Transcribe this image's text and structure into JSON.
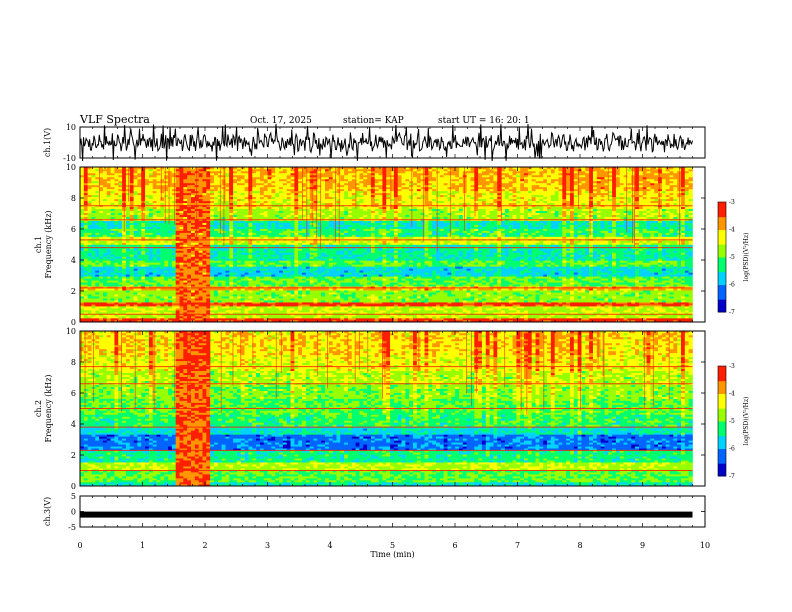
{
  "header": {
    "title": "VLF Spectra",
    "date": "Oct. 17, 2025",
    "station": "station= KAP",
    "start": "start  UT =   16: 20: 1"
  },
  "colors": {
    "spectrum": [
      "#0000c8",
      "#0064ff",
      "#00d2ff",
      "#00ff6e",
      "#96ff00",
      "#ffff00",
      "#ff9600",
      "#ff1e00",
      "#ffffff"
    ],
    "axis": "#000000",
    "trace": "#000000"
  },
  "chart_data": [
    {
      "type": "line",
      "name": "ch1-waveform",
      "ylabel": "ch.1(V)",
      "ylim": [
        -10,
        10
      ],
      "yticks": [
        "10",
        "-10"
      ],
      "xlim": [
        0,
        10
      ],
      "data_extent_min": 9.8,
      "series": [
        {
          "name": "ch.1",
          "note": "noisy waveform, amplitude about +/- 8 V, baseline near 0 V"
        }
      ]
    },
    {
      "type": "heatmap",
      "name": "ch1-spectrogram",
      "ylabel": "ch.1\nFrequency (kHz)",
      "ylim": [
        0,
        10
      ],
      "yticks": [
        "0",
        "2",
        "4",
        "6",
        "8",
        "10"
      ],
      "xlim": [
        0,
        10
      ],
      "colorbar": {
        "label": "log(PSD)(V²/Hz)",
        "range": [
          -7,
          -3
        ],
        "ticks": [
          "-3",
          "-4",
          "-5",
          "-6",
          "-7"
        ]
      },
      "bands": [
        {
          "from": 0,
          "to": 0.3,
          "level": -3.3
        },
        {
          "from": 0.3,
          "to": 1.0,
          "level": -4.6
        },
        {
          "from": 1.0,
          "to": 1.3,
          "level": -3.4
        },
        {
          "from": 1.3,
          "to": 2.0,
          "level": -4.8
        },
        {
          "from": 2.0,
          "to": 2.3,
          "level": -3.9
        },
        {
          "from": 2.3,
          "to": 3.0,
          "level": -5.0
        },
        {
          "from": 3.0,
          "to": 3.6,
          "level": -5.7
        },
        {
          "from": 3.6,
          "to": 4.0,
          "level": -5.0
        },
        {
          "from": 4.0,
          "to": 5.0,
          "level": -5.4
        },
        {
          "from": 5.0,
          "to": 5.5,
          "level": -4.5
        },
        {
          "from": 5.5,
          "to": 6.0,
          "level": -5.2
        },
        {
          "from": 6.0,
          "to": 6.5,
          "level": -5.5
        },
        {
          "from": 6.5,
          "to": 7.3,
          "level": -4.7
        },
        {
          "from": 7.3,
          "to": 8.5,
          "level": -4.3
        },
        {
          "from": 8.5,
          "to": 10,
          "level": -4.0
        }
      ],
      "lines_khz": [
        0.5,
        1.15,
        2.2,
        4.8,
        5.3,
        6.6,
        7.5
      ],
      "burst": {
        "t_start": 1.55,
        "t_end": 2.1,
        "level": -3.6
      }
    },
    {
      "type": "heatmap",
      "name": "ch2-spectrogram",
      "ylabel": "ch.2\nFrequency (kHz)",
      "ylim": [
        0,
        10
      ],
      "yticks": [
        "0",
        "2",
        "4",
        "6",
        "8",
        "10"
      ],
      "xlim": [
        0,
        10
      ],
      "colorbar": {
        "label": "log(PSD)(V²/Hz)",
        "range": [
          -7,
          -3
        ],
        "ticks": [
          "-3",
          "-4",
          "-5",
          "-6",
          "-7"
        ]
      },
      "bands": [
        {
          "from": 0,
          "to": 0.3,
          "level": -5.5
        },
        {
          "from": 0.3,
          "to": 1.0,
          "level": -5.0
        },
        {
          "from": 1.0,
          "to": 1.6,
          "level": -4.6
        },
        {
          "from": 1.6,
          "to": 2.3,
          "level": -5.3
        },
        {
          "from": 2.3,
          "to": 3.3,
          "level": -6.2
        },
        {
          "from": 3.3,
          "to": 3.8,
          "level": -5.6
        },
        {
          "from": 3.8,
          "to": 4.6,
          "level": -5.2
        },
        {
          "from": 4.6,
          "to": 5.6,
          "level": -5.0
        },
        {
          "from": 5.6,
          "to": 6.5,
          "level": -4.8
        },
        {
          "from": 6.5,
          "to": 7.5,
          "level": -4.6
        },
        {
          "from": 7.5,
          "to": 8.5,
          "level": -4.3
        },
        {
          "from": 8.5,
          "to": 10,
          "level": -4.1
        }
      ],
      "lines_khz": [
        1.0,
        2.3,
        3.8,
        5.0,
        6.6,
        7.7
      ],
      "burst": {
        "t_start": 1.55,
        "t_end": 2.1,
        "level": -3.5
      }
    },
    {
      "type": "line",
      "name": "ch3-waveform",
      "ylabel": "ch.3(V)",
      "ylim": [
        -5,
        5
      ],
      "yticks": [
        "5",
        "0",
        "-5"
      ],
      "xlim": [
        0,
        10
      ],
      "xlabel": "Time  (min)",
      "xticks": [
        "0",
        "1",
        "2",
        "3",
        "4",
        "5",
        "6",
        "7",
        "8",
        "9",
        "10"
      ],
      "series": [
        {
          "name": "ch.3",
          "note": "thick flat trace near -1 V"
        }
      ],
      "level": -1
    }
  ]
}
